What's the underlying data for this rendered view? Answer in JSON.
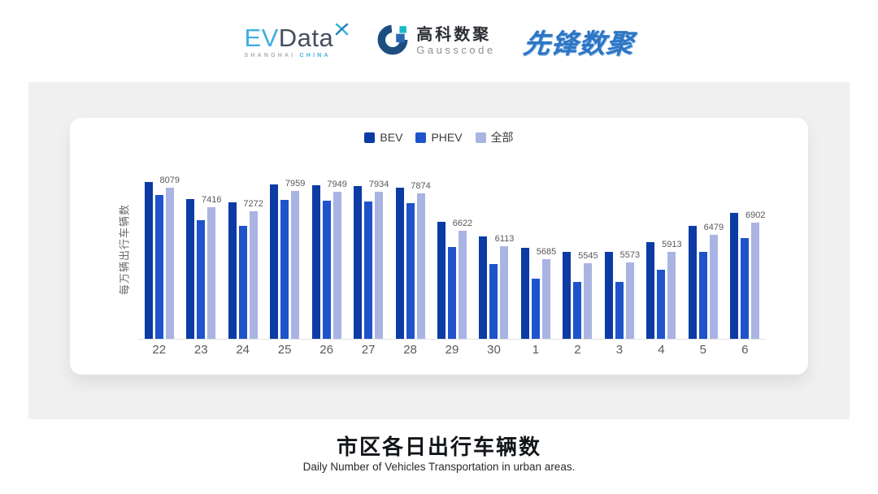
{
  "header": {
    "evdata_logo": {
      "ev": "EV",
      "data": "Data",
      "tagline_left": "SHANGHAI",
      "tagline_right": "CHINA"
    },
    "gausscode_logo": {
      "name_cn": "高科数聚",
      "name_en": "Gausscode"
    },
    "pioneer_logo": {
      "text": "先锋数聚"
    }
  },
  "chart_data": {
    "type": "bar",
    "categories": [
      "22",
      "23",
      "24",
      "25",
      "26",
      "27",
      "28",
      "29",
      "30",
      "1",
      "2",
      "3",
      "4",
      "5",
      "6"
    ],
    "series": [
      {
        "name": "BEV",
        "color": "#0c3ba4",
        "labels_shown": false,
        "values": [
          8260,
          7700,
          7570,
          8170,
          8150,
          8140,
          8060,
          6920,
          6445,
          6050,
          5905,
          5925,
          6245,
          6790,
          7225
        ]
      },
      {
        "name": "PHEV",
        "color": "#1e53cb",
        "labels_shown": false,
        "values": [
          7835,
          6985,
          6785,
          7660,
          7640,
          7620,
          7560,
          6090,
          5515,
          5020,
          4900,
          4900,
          5320,
          5905,
          6375
        ]
      },
      {
        "name": "全部",
        "color": "#a9b4e3",
        "labels_shown": true,
        "values": [
          8079,
          7416,
          7272,
          7959,
          7949,
          7934,
          7874,
          6622,
          6113,
          5685,
          5545,
          5573,
          5913,
          6479,
          6902
        ]
      }
    ],
    "ylabel": "每万辆出行车辆数",
    "xlabel": "",
    "ylim": [
      3000,
      9000
    ],
    "grid": false,
    "legend_position": "top-center",
    "note_axis": "bars drawn from non-zero baseline (~3000), only 全部 series shows value labels"
  },
  "footer": {
    "title": "市区各日出行车辆数",
    "subtitle": "Daily Number of Vehicles Transportation in urban areas."
  }
}
